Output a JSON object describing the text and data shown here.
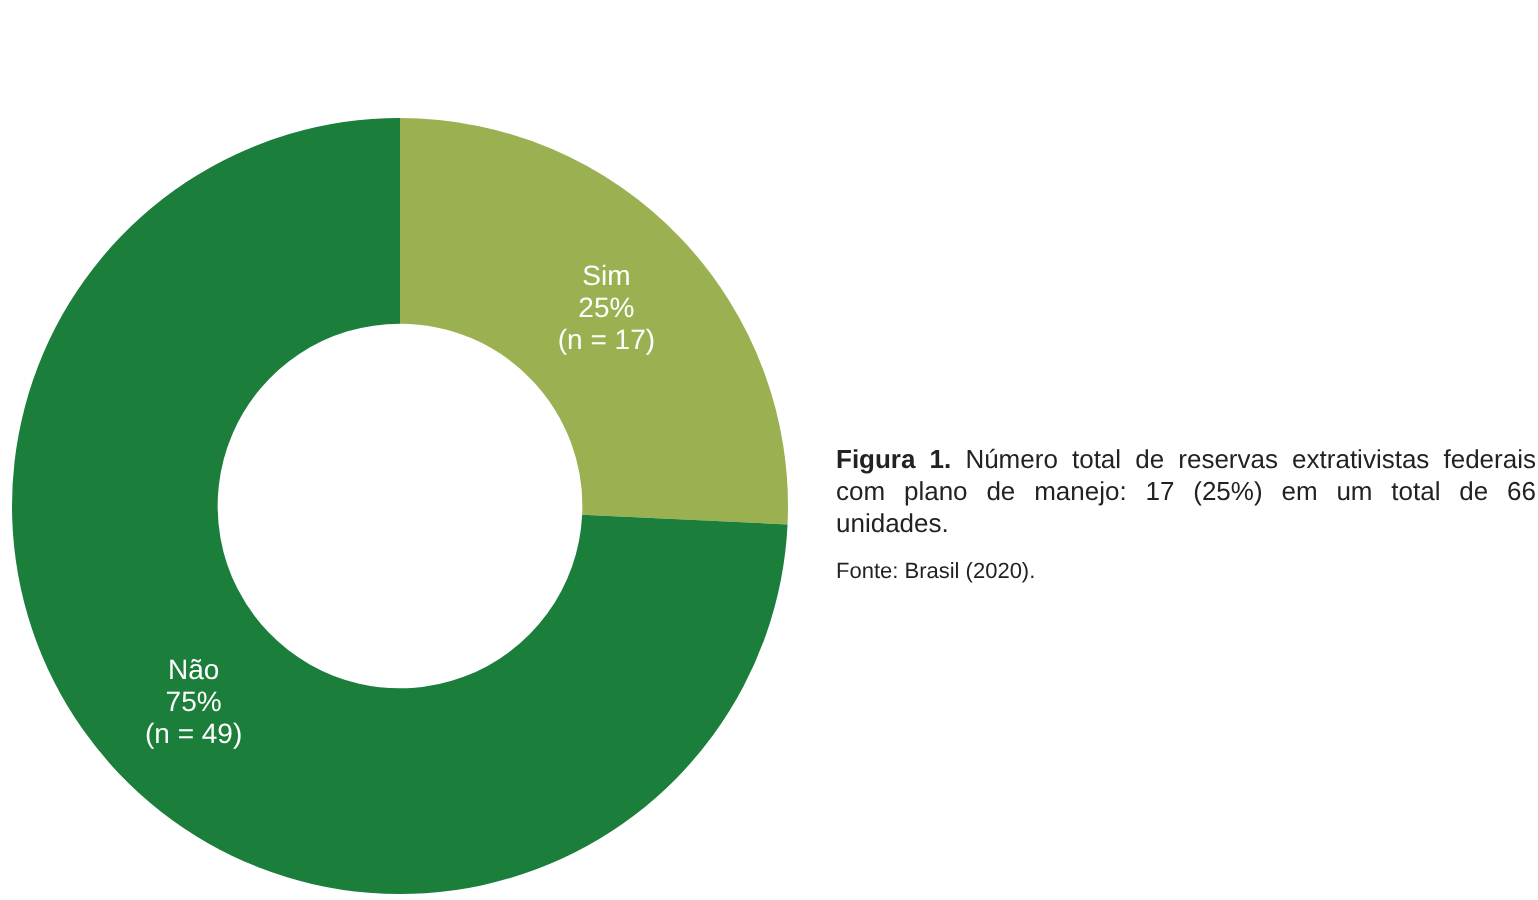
{
  "chart_data": {
    "type": "donut",
    "categories": [
      "Sim",
      "Não"
    ],
    "values": [
      17,
      49
    ],
    "colors": [
      "#9bb151",
      "#1b7e3b"
    ],
    "value_labels": [
      "25%\n(n = 17)",
      "75%\n(n = 49)"
    ],
    "legend": false,
    "annotations": [
      "Figura 1.",
      "Número total de reservas extrativistas federais com plano de manejo: 17 (25%) em um total de 66 unidades.",
      "Fonte: Brasil (2020)."
    ]
  }
}
